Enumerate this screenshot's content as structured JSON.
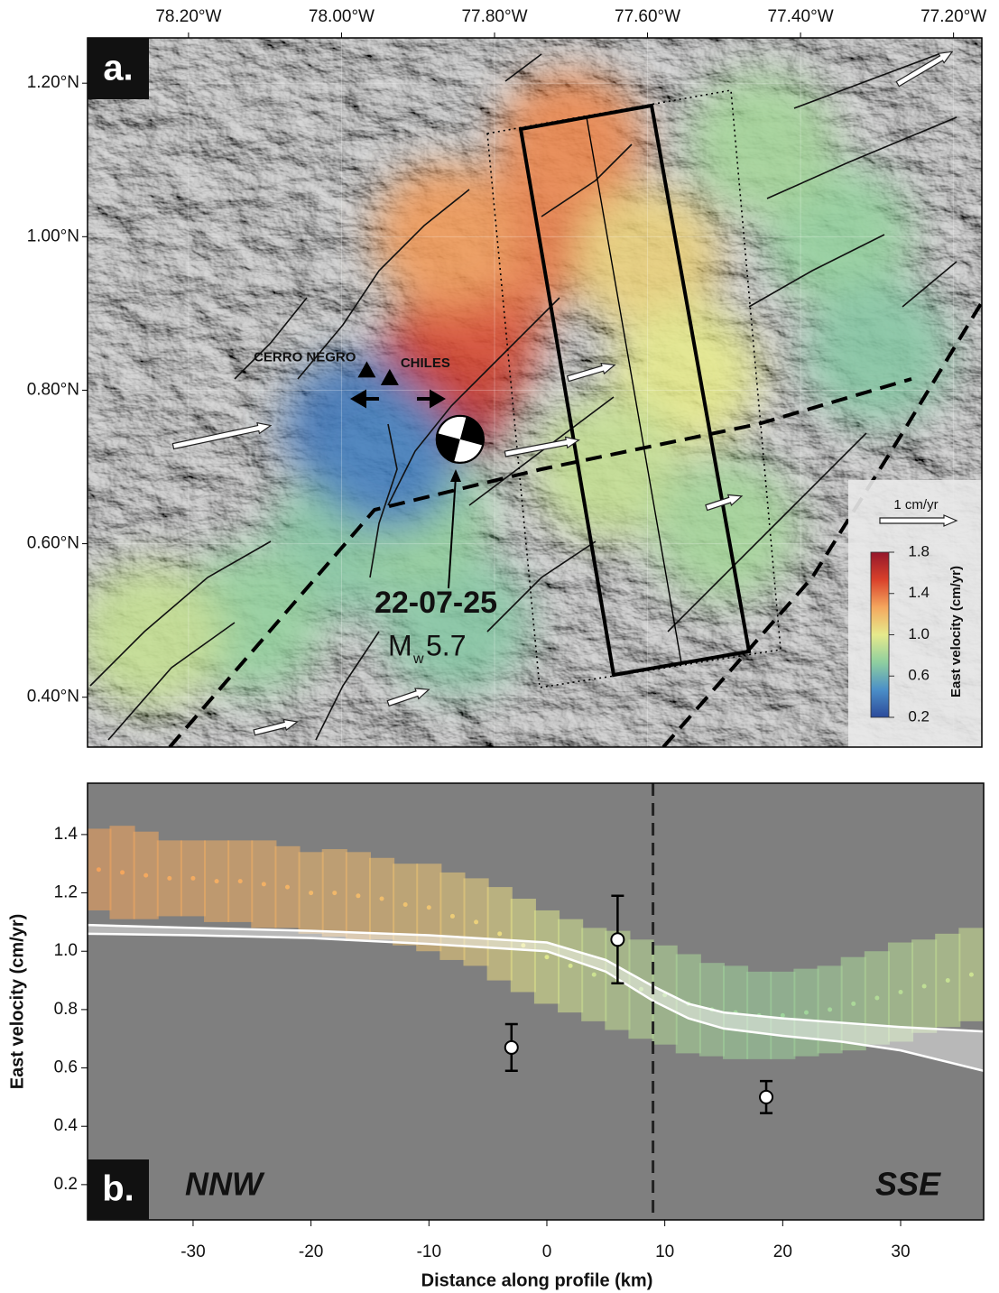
{
  "chart_data": [
    {
      "type": "map",
      "label": "a.",
      "xlim": [
        -78.332,
        -77.163
      ],
      "ylim": [
        0.335,
        1.259
      ],
      "xticks": [
        {
          "value": -78.2,
          "label": "78.20°W"
        },
        {
          "value": -78.0,
          "label": "78.00°W"
        },
        {
          "value": -77.8,
          "label": "77.80°W"
        },
        {
          "value": -77.6,
          "label": "77.60°W"
        },
        {
          "value": -77.4,
          "label": "77.40°W"
        },
        {
          "value": -77.2,
          "label": "77.20°W"
        }
      ],
      "yticks": [
        {
          "value": 0.4,
          "label": "0.40°N"
        },
        {
          "value": 0.6,
          "label": "0.60°N"
        },
        {
          "value": 0.8,
          "label": "0.80°N"
        },
        {
          "value": 1.0,
          "label": "1.00°N"
        },
        {
          "value": 1.2,
          "label": "1.20°N"
        }
      ],
      "grid": true,
      "colorbar": {
        "label": "East velocity (cm/yr)",
        "lim": [
          0.2,
          1.8
        ],
        "ticks": [
          0.2,
          0.6,
          {
            "value": 1,
            "label": "1.0"
          },
          1.4,
          1.8
        ],
        "colors": [
          "#2c4a9a",
          "#4b8fc8",
          "#8fcf9f",
          "#e6ea8c",
          "#f4a75e",
          "#d9412b",
          "#94172b"
        ]
      },
      "velocity_patches": [
        {
          "lon": -77.87,
          "lat": 0.8,
          "value": 1.75
        },
        {
          "lon": -77.84,
          "lat": 0.86,
          "value": 1.6
        },
        {
          "lon": -77.82,
          "lat": 0.93,
          "value": 1.5
        },
        {
          "lon": -77.76,
          "lat": 1.0,
          "value": 1.4
        },
        {
          "lon": -77.7,
          "lat": 1.12,
          "value": 1.35
        },
        {
          "lon": -77.86,
          "lat": 1.0,
          "value": 1.3
        },
        {
          "lon": -77.6,
          "lat": 0.97,
          "value": 1.1
        },
        {
          "lon": -77.55,
          "lat": 0.82,
          "value": 1.0
        },
        {
          "lon": -77.65,
          "lat": 0.7,
          "value": 0.9
        },
        {
          "lon": -77.35,
          "lat": 1.0,
          "value": 0.75
        },
        {
          "lon": -77.3,
          "lat": 0.85,
          "value": 0.7
        },
        {
          "lon": -77.45,
          "lat": 1.12,
          "value": 0.8
        },
        {
          "lon": -78.0,
          "lat": 0.6,
          "value": 0.7
        },
        {
          "lon": -78.12,
          "lat": 0.5,
          "value": 0.75
        },
        {
          "lon": -77.85,
          "lat": 0.5,
          "value": 0.7
        },
        {
          "lon": -77.5,
          "lat": 0.62,
          "value": 0.8
        },
        {
          "lon": -78.25,
          "lat": 0.48,
          "value": 0.9
        },
        {
          "lon": -77.9,
          "lat": 0.64,
          "value": 0.75
        },
        {
          "lon": -77.98,
          "lat": 0.75,
          "value": 0.35
        },
        {
          "lon": -77.94,
          "lat": 0.71,
          "value": 0.4
        }
      ],
      "gps_vectors": [
        {
          "lon": -78.22,
          "lat": 0.727,
          "east": 1.27,
          "north": 0.27
        },
        {
          "lon": -77.786,
          "lat": 0.717,
          "east": 0.96,
          "north": 0.18
        },
        {
          "lon": -77.704,
          "lat": 0.815,
          "east": 0.61,
          "north": 0.18
        },
        {
          "lon": -77.523,
          "lat": 0.647,
          "east": 0.46,
          "north": 0.15
        },
        {
          "lon": -77.273,
          "lat": 1.199,
          "east": 0.71,
          "north": 0.42
        },
        {
          "lon": -77.939,
          "lat": 0.392,
          "east": 0.53,
          "north": 0.18
        },
        {
          "lon": -78.114,
          "lat": 0.354,
          "east": 0.56,
          "north": 0.14
        }
      ],
      "scale_arrow": {
        "value": 1,
        "label": "1 cm/yr"
      },
      "volcanoes": [
        {
          "name": "CERRO NEGRO",
          "lon": -77.967,
          "lat": 0.826
        },
        {
          "name": "CHILES",
          "lon": -77.937,
          "lat": 0.816
        }
      ],
      "event": {
        "date": "22-07-25",
        "magnitude_symbol": "M",
        "magnitude_subscript": "w",
        "magnitude": 5.7,
        "lon": -77.845,
        "lat": 0.736
      }
    },
    {
      "type": "profile",
      "label": "b.",
      "xlabel": "Distance along profile (km)",
      "ylabel": "East velocity (cm/yr)",
      "xlim": [
        -38.95,
        37.04
      ],
      "ylim": [
        0.079,
        1.576
      ],
      "xticks": [
        -30,
        -20,
        -10,
        0,
        10,
        20,
        30
      ],
      "yticks": [
        0.2,
        0.4,
        0.6,
        0.8,
        {
          "value": 1,
          "label": "1.0"
        },
        1.2,
        1.4
      ],
      "marker_x": 9,
      "left_label": "NNW",
      "right_label": "SSE",
      "insar": {
        "x": [
          -38,
          -36,
          -34,
          -32,
          -30,
          -28,
          -26,
          -24,
          -22,
          -20,
          -18,
          -16,
          -14,
          -12,
          -10,
          -8,
          -6,
          -4,
          -2,
          0,
          2,
          4,
          6,
          8,
          10,
          12,
          14,
          16,
          18,
          20,
          22,
          24,
          26,
          28,
          30,
          32,
          34,
          36
        ],
        "values": [
          1.28,
          1.27,
          1.26,
          1.25,
          1.25,
          1.24,
          1.24,
          1.23,
          1.22,
          1.2,
          1.2,
          1.19,
          1.18,
          1.16,
          1.15,
          1.12,
          1.1,
          1.06,
          1.02,
          0.98,
          0.95,
          0.92,
          0.9,
          0.87,
          0.85,
          0.82,
          0.8,
          0.79,
          0.78,
          0.78,
          0.79,
          0.8,
          0.82,
          0.84,
          0.86,
          0.88,
          0.9,
          0.92
        ],
        "spread": [
          0.14,
          0.16,
          0.15,
          0.13,
          0.13,
          0.14,
          0.14,
          0.15,
          0.14,
          0.14,
          0.15,
          0.15,
          0.14,
          0.14,
          0.15,
          0.15,
          0.15,
          0.16,
          0.16,
          0.16,
          0.16,
          0.16,
          0.17,
          0.17,
          0.17,
          0.17,
          0.16,
          0.16,
          0.15,
          0.15,
          0.15,
          0.15,
          0.16,
          0.16,
          0.17,
          0.16,
          0.16,
          0.16
        ]
      },
      "model": {
        "x": [
          -38.95,
          -30,
          -20,
          -10,
          0,
          5,
          9,
          12,
          15,
          20,
          25,
          30,
          37.04
        ],
        "upper": [
          1.09,
          1.08,
          1.07,
          1.055,
          1.03,
          0.97,
          0.88,
          0.82,
          0.79,
          0.77,
          0.755,
          0.74,
          0.725
        ],
        "lower": [
          1.06,
          1.055,
          1.045,
          1.025,
          1.0,
          0.93,
          0.83,
          0.77,
          0.735,
          0.71,
          0.69,
          0.66,
          0.59
        ]
      },
      "gps": {
        "x": [
          -3,
          6,
          18.6
        ],
        "values": [
          0.67,
          1.04,
          0.5
        ],
        "errors": [
          0.08,
          0.15,
          0.055
        ]
      }
    }
  ]
}
